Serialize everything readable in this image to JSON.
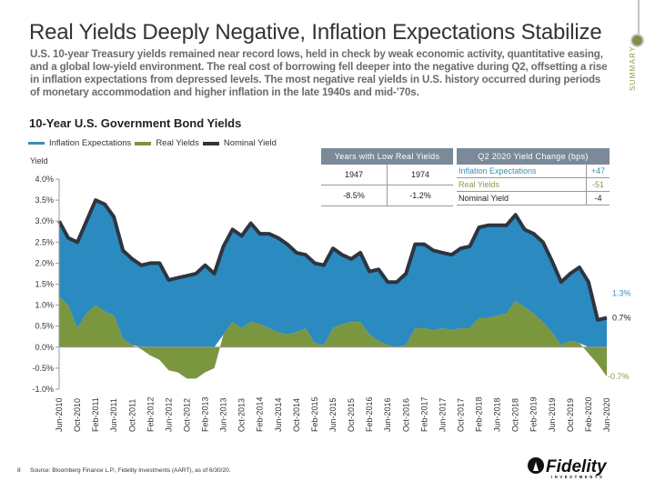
{
  "header": {
    "title": "Real Yields Deeply Negative, Inflation Expectations Stabilize",
    "subtitle": "U.S. 10-year Treasury yields remained near record lows, held in check by weak economic activity, quantitative easing, and a global low-yield environment. The real cost of borrowing fell deeper into the negative during Q2, offsetting a rise in inflation expectations from depressed levels. The most negative real yields in U.S. history occurred during periods of monetary accommodation and higher inflation in the late 1940s and mid-’70s."
  },
  "side_nav": {
    "label": "SUMMARY",
    "accent": "#7c9142"
  },
  "colors": {
    "inflation": "#2b8ac0",
    "real": "#7a963e",
    "nominal": "#2d3540",
    "inflation_text": "#3a8fb5",
    "real_text": "#8a9a4a",
    "table_header": "#7a8a99"
  },
  "table_low_real": {
    "header": "Years with Low Real Yields",
    "years": [
      "1947",
      "1974"
    ],
    "values": [
      "-8.5%",
      "-1.2%"
    ]
  },
  "table_q2_change": {
    "header": "Q2 2020 Yield Change (bps)",
    "rows": [
      {
        "name": "Inflation Expectations",
        "value": "+47"
      },
      {
        "name": "Real Yields",
        "value": "-51"
      },
      {
        "name": "Nominal Yield",
        "value": "-4"
      }
    ]
  },
  "footer": {
    "page_number": "8",
    "source": "Source: Bloomberg Finance L.P., Fidelity Investments (AART), as of 6/30/20.",
    "logo_text": "Fidelity",
    "logo_subtext": "INVESTMENTS"
  },
  "chart_data": {
    "type": "area",
    "title": "10-Year U.S. Government Bond Yields",
    "ylabel": "Yield",
    "xlabel": "",
    "ylim": [
      -1.0,
      4.0
    ],
    "yticks": [
      4.0,
      3.5,
      3.0,
      2.5,
      2.0,
      1.5,
      1.0,
      0.5,
      0.0,
      -0.5,
      -1.0
    ],
    "ytick_labels": [
      "4.0%",
      "3.5%",
      "3.0%",
      "2.5%",
      "2.0%",
      "1.5%",
      "1.0%",
      "0.5%",
      "0.0%",
      "-0.5%",
      "-1.0%"
    ],
    "xtick_labels": [
      "Jun-2010",
      "Oct-2010",
      "Feb-2011",
      "Jun-2011",
      "Oct-2011",
      "Feb-2012",
      "Jun-2012",
      "Oct-2012",
      "Feb-2013",
      "Jun-2013",
      "Oct-2013",
      "Feb-2014",
      "Jun-2014",
      "Oct-2014",
      "Feb-2015",
      "Jun-2015",
      "Oct-2015",
      "Feb-2016",
      "Jun-2016",
      "Oct-2016",
      "Feb-2017",
      "Jun-2017",
      "Oct-2017",
      "Feb-2018",
      "Jun-2018",
      "Oct-2018",
      "Feb-2019",
      "Jun-2019",
      "Oct-2019",
      "Feb-2020",
      "Jun-2020"
    ],
    "legend": [
      "Inflation Expectations",
      "Real Yields",
      "Nominal Yield"
    ],
    "legend_position": "top-left",
    "x_start": "Jun-2010",
    "x_end": "Jun-2020",
    "x_step_months": 2,
    "series": [
      {
        "name": "Nominal Yield",
        "kind": "line",
        "values": [
          3.0,
          2.6,
          2.5,
          3.0,
          3.5,
          3.4,
          3.1,
          2.3,
          2.1,
          1.95,
          2.0,
          2.0,
          1.6,
          1.65,
          1.7,
          1.75,
          1.95,
          1.75,
          2.4,
          2.8,
          2.65,
          2.95,
          2.7,
          2.7,
          2.6,
          2.45,
          2.25,
          2.2,
          2.0,
          1.95,
          2.35,
          2.2,
          2.1,
          2.25,
          1.8,
          1.85,
          1.55,
          1.55,
          1.75,
          2.45,
          2.45,
          2.3,
          2.25,
          2.2,
          2.35,
          2.4,
          2.85,
          2.9,
          2.9,
          2.9,
          3.15,
          2.8,
          2.7,
          2.5,
          2.05,
          1.55,
          1.75,
          1.9,
          1.55,
          0.65,
          0.7
        ]
      },
      {
        "name": "Real Yields",
        "kind": "area",
        "values": [
          1.2,
          1.0,
          0.45,
          0.8,
          1.0,
          0.85,
          0.75,
          0.2,
          0.05,
          -0.05,
          -0.2,
          -0.3,
          -0.55,
          -0.6,
          -0.75,
          -0.75,
          -0.6,
          -0.5,
          0.3,
          0.6,
          0.45,
          0.6,
          0.55,
          0.45,
          0.35,
          0.3,
          0.35,
          0.45,
          0.1,
          0.05,
          0.45,
          0.55,
          0.6,
          0.6,
          0.3,
          0.15,
          0.05,
          0.0,
          0.05,
          0.45,
          0.45,
          0.4,
          0.45,
          0.4,
          0.45,
          0.45,
          0.7,
          0.7,
          0.75,
          0.8,
          1.1,
          0.95,
          0.8,
          0.6,
          0.35,
          0.05,
          0.15,
          0.1,
          -0.15,
          -0.4,
          -0.7
        ]
      },
      {
        "name": "Inflation Expectations",
        "kind": "area",
        "values": [
          1.8,
          1.6,
          2.05,
          2.2,
          2.5,
          2.55,
          2.35,
          2.1,
          2.05,
          2.0,
          2.2,
          2.3,
          2.15,
          2.25,
          2.45,
          2.5,
          2.55,
          2.25,
          2.1,
          2.2,
          2.2,
          2.35,
          2.15,
          2.25,
          2.25,
          2.15,
          1.9,
          1.75,
          1.9,
          1.9,
          1.9,
          1.65,
          1.5,
          1.65,
          1.5,
          1.7,
          1.5,
          1.55,
          1.7,
          2.0,
          2.0,
          1.9,
          1.8,
          1.8,
          1.9,
          1.95,
          2.15,
          2.2,
          2.15,
          2.1,
          2.05,
          1.85,
          1.9,
          1.9,
          1.7,
          1.5,
          1.6,
          1.8,
          1.7,
          1.05,
          1.3
        ]
      }
    ],
    "end_labels": [
      {
        "series": "Inflation Expectations",
        "text": "1.3%"
      },
      {
        "series": "Nominal Yield",
        "text": "0.7%"
      },
      {
        "series": "Real Yields",
        "text": "-0.7%"
      }
    ]
  }
}
